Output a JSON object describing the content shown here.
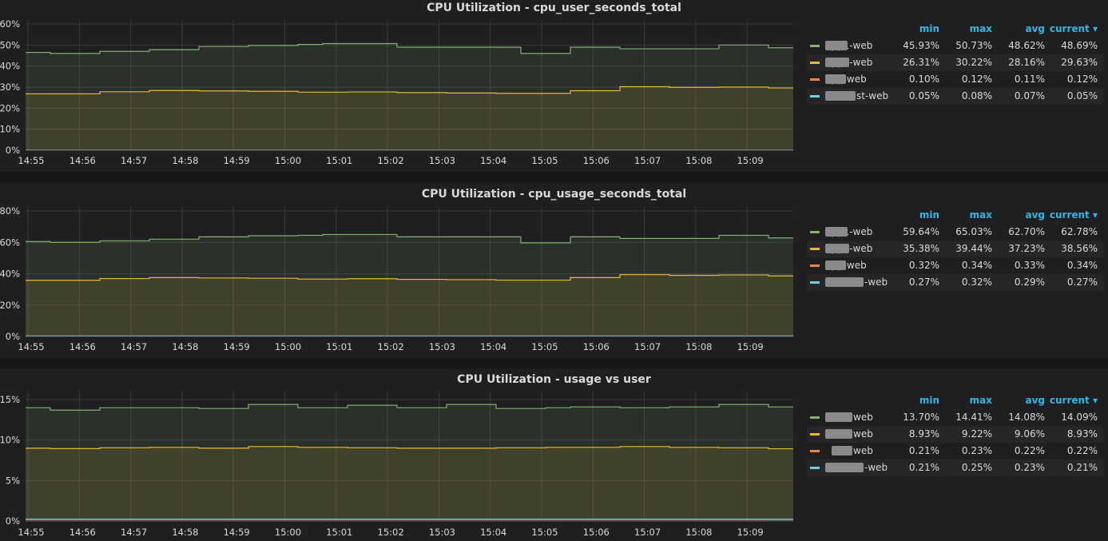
{
  "colors": {
    "series": [
      "#7eb26d",
      "#eab839",
      "#ef843c",
      "#6ed0e0"
    ],
    "legend_header": "#33b5e5",
    "grid": "#3a3a3c",
    "background": "#1f1f21"
  },
  "legend_headers": {
    "min": "min",
    "max": "max",
    "avg": "avg",
    "current": "current"
  },
  "chart_data": [
    {
      "type": "area",
      "title": "CPU Utilization - cpu_user_seconds_total",
      "x_ticks": [
        "14:55",
        "14:56",
        "14:57",
        "14:58",
        "14:59",
        "15:00",
        "15:01",
        "15:02",
        "15:03",
        "15:04",
        "15:05",
        "15:06",
        "15:07",
        "15:08",
        "15:09"
      ],
      "y_ticks": [
        "0%",
        "10%",
        "20%",
        "30%",
        "40%",
        "50%",
        "60%"
      ],
      "ylim": [
        0,
        60
      ],
      "unit": "%",
      "series": [
        {
          "name": "app1-web",
          "min": "45.93%",
          "max": "50.73%",
          "avg": "48.62%",
          "current": "48.69%",
          "values": [
            46.5,
            46.0,
            46.0,
            47.0,
            47.0,
            47.8,
            47.8,
            49.3,
            49.3,
            49.8,
            49.8,
            50.3,
            50.7,
            50.7,
            50.7,
            49.0,
            49.0,
            49.0,
            49.0,
            49.0,
            46.0,
            46.0,
            49.0,
            49.0,
            48.2,
            48.2,
            48.2,
            48.2,
            50.0,
            50.0,
            48.7,
            48.7
          ]
        },
        {
          "name": "app3-web",
          "min": "26.31%",
          "max": "30.22%",
          "avg": "28.16%",
          "current": "29.63%",
          "values": [
            26.8,
            26.8,
            26.8,
            27.8,
            27.8,
            28.4,
            28.4,
            28.2,
            28.2,
            28.0,
            28.0,
            27.6,
            27.6,
            27.7,
            27.7,
            27.4,
            27.4,
            27.2,
            27.2,
            27.0,
            27.0,
            27.0,
            28.3,
            28.3,
            30.2,
            30.2,
            29.9,
            29.9,
            30.0,
            30.0,
            29.6,
            29.6
          ]
        },
        {
          "name": "app-web",
          "min": "0.10%",
          "max": "0.12%",
          "avg": "0.11%",
          "current": "0.12%",
          "values": [
            0.11,
            0.11,
            0.11,
            0.11,
            0.11,
            0.11,
            0.11,
            0.11,
            0.11,
            0.11,
            0.11,
            0.11,
            0.11,
            0.11,
            0.11,
            0.11,
            0.11,
            0.11,
            0.11,
            0.11,
            0.11,
            0.11,
            0.11,
            0.11,
            0.11,
            0.11,
            0.11,
            0.11,
            0.11,
            0.11,
            0.12,
            0.12
          ]
        },
        {
          "name": "st-web",
          "min": "0.05%",
          "max": "0.08%",
          "avg": "0.07%",
          "current": "0.05%",
          "values": [
            0.07,
            0.07,
            0.07,
            0.07,
            0.07,
            0.07,
            0.07,
            0.07,
            0.07,
            0.07,
            0.07,
            0.07,
            0.07,
            0.07,
            0.07,
            0.07,
            0.07,
            0.07,
            0.07,
            0.07,
            0.07,
            0.07,
            0.07,
            0.07,
            0.07,
            0.07,
            0.07,
            0.07,
            0.07,
            0.07,
            0.05,
            0.05
          ]
        }
      ]
    },
    {
      "type": "area",
      "title": "CPU Utilization - cpu_usage_seconds_total",
      "x_ticks": [
        "14:55",
        "14:56",
        "14:57",
        "14:58",
        "14:59",
        "15:00",
        "15:01",
        "15:02",
        "15:03",
        "15:04",
        "15:05",
        "15:06",
        "15:07",
        "15:08",
        "15:09"
      ],
      "y_ticks": [
        "0%",
        "20%",
        "40%",
        "60%",
        "80%"
      ],
      "ylim": [
        0,
        80
      ],
      "unit": "%",
      "series": [
        {
          "name": "app1-web",
          "min": "59.64%",
          "max": "65.03%",
          "avg": "62.70%",
          "current": "62.78%",
          "values": [
            60.5,
            60.0,
            60.0,
            61.0,
            61.0,
            62.0,
            62.0,
            63.5,
            63.5,
            64.2,
            64.2,
            64.5,
            65.0,
            65.0,
            65.0,
            63.5,
            63.5,
            63.5,
            63.5,
            63.5,
            59.7,
            59.7,
            63.5,
            63.5,
            62.5,
            62.5,
            62.5,
            62.5,
            64.5,
            64.5,
            62.8,
            62.8
          ]
        },
        {
          "name": "app3-web",
          "min": "35.38%",
          "max": "39.44%",
          "avg": "37.23%",
          "current": "38.56%",
          "values": [
            35.8,
            35.8,
            35.8,
            36.9,
            36.9,
            37.5,
            37.5,
            37.3,
            37.3,
            37.1,
            37.1,
            36.6,
            36.6,
            36.8,
            36.8,
            36.4,
            36.4,
            36.2,
            36.2,
            35.9,
            35.9,
            35.9,
            37.5,
            37.5,
            39.4,
            39.4,
            39.0,
            39.0,
            39.2,
            39.2,
            38.6,
            38.6
          ]
        },
        {
          "name": "app-web",
          "min": "0.32%",
          "max": "0.34%",
          "avg": "0.33%",
          "current": "0.34%",
          "values": [
            0.33,
            0.33,
            0.33,
            0.33,
            0.33,
            0.33,
            0.33,
            0.33,
            0.33,
            0.33,
            0.33,
            0.33,
            0.33,
            0.33,
            0.33,
            0.33,
            0.33,
            0.33,
            0.33,
            0.33,
            0.33,
            0.33,
            0.33,
            0.33,
            0.33,
            0.33,
            0.33,
            0.33,
            0.33,
            0.33,
            0.34,
            0.34
          ]
        },
        {
          "name": "-web",
          "min": "0.27%",
          "max": "0.32%",
          "avg": "0.29%",
          "current": "0.27%",
          "values": [
            0.29,
            0.29,
            0.29,
            0.29,
            0.29,
            0.29,
            0.29,
            0.29,
            0.29,
            0.29,
            0.29,
            0.29,
            0.29,
            0.29,
            0.29,
            0.29,
            0.29,
            0.29,
            0.29,
            0.29,
            0.29,
            0.29,
            0.29,
            0.29,
            0.29,
            0.29,
            0.29,
            0.29,
            0.29,
            0.29,
            0.27,
            0.27
          ]
        }
      ]
    },
    {
      "type": "area",
      "title": "CPU Utilization - usage vs user",
      "x_ticks": [
        "14:55",
        "14:56",
        "14:57",
        "14:58",
        "14:59",
        "15:00",
        "15:01",
        "15:02",
        "15:03",
        "15:04",
        "15:05",
        "15:06",
        "15:07",
        "15:08",
        "15:09"
      ],
      "y_ticks": [
        "0%",
        "5%",
        "10%",
        "15%"
      ],
      "ylim": [
        0,
        15.5
      ],
      "unit": "%",
      "series": [
        {
          "name": "web",
          "min": "13.70%",
          "max": "14.41%",
          "avg": "14.08%",
          "current": "14.09%",
          "values": [
            14.0,
            13.7,
            13.7,
            14.0,
            14.0,
            14.0,
            14.0,
            13.9,
            13.9,
            14.4,
            14.4,
            14.0,
            14.0,
            14.3,
            14.3,
            14.0,
            14.0,
            14.4,
            14.4,
            13.9,
            13.9,
            14.0,
            14.1,
            14.1,
            14.0,
            14.0,
            14.1,
            14.1,
            14.4,
            14.4,
            14.1,
            14.1
          ]
        },
        {
          "name": "web",
          "min": "8.93%",
          "max": "9.22%",
          "avg": "9.06%",
          "current": "8.93%",
          "values": [
            9.0,
            8.95,
            8.95,
            9.05,
            9.05,
            9.1,
            9.1,
            9.0,
            9.0,
            9.2,
            9.2,
            9.1,
            9.1,
            9.05,
            9.05,
            9.0,
            9.0,
            9.0,
            9.0,
            9.05,
            9.05,
            9.1,
            9.1,
            9.1,
            9.2,
            9.2,
            9.1,
            9.1,
            9.05,
            9.05,
            8.93,
            8.93
          ]
        },
        {
          "name": "web",
          "min": "0.21%",
          "max": "0.23%",
          "avg": "0.22%",
          "current": "0.22%",
          "values": [
            0.22,
            0.22,
            0.22,
            0.22,
            0.22,
            0.22,
            0.22,
            0.22,
            0.22,
            0.22,
            0.22,
            0.22,
            0.22,
            0.22,
            0.22,
            0.22,
            0.22,
            0.22,
            0.22,
            0.22,
            0.22,
            0.22,
            0.22,
            0.22,
            0.22,
            0.22,
            0.22,
            0.22,
            0.22,
            0.22,
            0.22,
            0.22
          ]
        },
        {
          "name": "-web",
          "min": "0.21%",
          "max": "0.25%",
          "avg": "0.23%",
          "current": "0.21%",
          "values": [
            0.23,
            0.23,
            0.23,
            0.23,
            0.23,
            0.23,
            0.23,
            0.23,
            0.23,
            0.23,
            0.23,
            0.23,
            0.23,
            0.23,
            0.23,
            0.23,
            0.23,
            0.23,
            0.23,
            0.23,
            0.23,
            0.23,
            0.23,
            0.23,
            0.23,
            0.23,
            0.23,
            0.23,
            0.23,
            0.23,
            0.21,
            0.21
          ]
        }
      ]
    }
  ]
}
